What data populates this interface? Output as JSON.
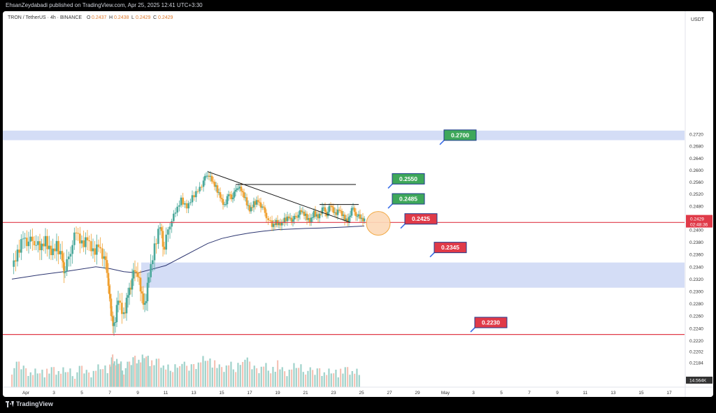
{
  "header": {
    "published_text": "EhsanZeydabadi published on TradingView.com, Apr 25, 2025 12:41 UTC+3:30"
  },
  "footer": {
    "brand": "TradingView"
  },
  "chart_data": {
    "type": "candlestick",
    "symbol_legend": {
      "symbol": "TRON / TetherUS · 4h · BINANCE",
      "o_label": "O",
      "o": "0.2437",
      "h_label": "H",
      "h": "0.2438",
      "l_label": "L",
      "l": "0.2429",
      "c_label": "C",
      "c": "0.2429"
    },
    "currency_label": "USDT",
    "y_ticks": [
      "0.2720",
      "0.2680",
      "0.2640",
      "0.2600",
      "0.2560",
      "0.2520",
      "0.2480",
      "0.2440",
      "0.2400",
      "0.2380",
      "0.2360",
      "0.2340",
      "0.2320",
      "0.2300",
      "0.2280",
      "0.2260",
      "0.2240",
      "0.2220",
      "0.2202",
      "0.2184"
    ],
    "x_ticks": [
      {
        "label": "Apr",
        "day": 1
      },
      {
        "label": "3",
        "day": 3
      },
      {
        "label": "5",
        "day": 5
      },
      {
        "label": "7",
        "day": 7
      },
      {
        "label": "9",
        "day": 9
      },
      {
        "label": "11",
        "day": 11
      },
      {
        "label": "13",
        "day": 13
      },
      {
        "label": "15",
        "day": 15
      },
      {
        "label": "17",
        "day": 17
      },
      {
        "label": "19",
        "day": 19
      },
      {
        "label": "21",
        "day": 21
      },
      {
        "label": "23",
        "day": 23
      },
      {
        "label": "25",
        "day": 25
      },
      {
        "label": "27",
        "day": 27
      },
      {
        "label": "29",
        "day": 29
      },
      {
        "label": "May",
        "day": 31
      },
      {
        "label": "3",
        "day": 33
      },
      {
        "label": "5",
        "day": 35
      },
      {
        "label": "7",
        "day": 37
      },
      {
        "label": "9",
        "day": 39
      },
      {
        "label": "11",
        "day": 41
      },
      {
        "label": "13",
        "day": 43
      },
      {
        "label": "15",
        "day": 45
      },
      {
        "label": "17",
        "day": 47
      }
    ],
    "current_price_label": "0.2429",
    "countdown_label": "02:48:36",
    "volume_label": "14.564K",
    "price_path": [
      [
        0.0,
        0.234
      ],
      [
        0.4,
        0.2362
      ],
      [
        0.8,
        0.2392
      ],
      [
        1.2,
        0.2378
      ],
      [
        1.6,
        0.2384
      ],
      [
        2.0,
        0.2367
      ],
      [
        2.4,
        0.2381
      ],
      [
        2.8,
        0.2362
      ],
      [
        3.2,
        0.2376
      ],
      [
        3.6,
        0.2356
      ],
      [
        3.8,
        0.233
      ],
      [
        4.2,
        0.237
      ],
      [
        4.6,
        0.2395
      ],
      [
        5.0,
        0.2374
      ],
      [
        5.4,
        0.2386
      ],
      [
        5.8,
        0.2364
      ],
      [
        6.2,
        0.2378
      ],
      [
        6.6,
        0.2354
      ],
      [
        6.9,
        0.2318
      ],
      [
        7.1,
        0.226
      ],
      [
        7.3,
        0.224
      ],
      [
        7.6,
        0.2288
      ],
      [
        8.0,
        0.226
      ],
      [
        8.3,
        0.23
      ],
      [
        8.6,
        0.2318
      ],
      [
        8.9,
        0.234
      ],
      [
        9.2,
        0.23
      ],
      [
        9.5,
        0.2272
      ],
      [
        9.8,
        0.2326
      ],
      [
        10.2,
        0.2372
      ],
      [
        10.6,
        0.2415
      ],
      [
        10.9,
        0.2365
      ],
      [
        11.3,
        0.242
      ],
      [
        11.7,
        0.2458
      ],
      [
        12.1,
        0.2499
      ],
      [
        12.5,
        0.2475
      ],
      [
        12.9,
        0.251
      ],
      [
        13.3,
        0.2535
      ],
      [
        13.7,
        0.2562
      ],
      [
        14.0,
        0.259
      ],
      [
        14.3,
        0.2562
      ],
      [
        14.6,
        0.254
      ],
      [
        14.9,
        0.251
      ],
      [
        15.2,
        0.248
      ],
      [
        15.5,
        0.2525
      ],
      [
        15.8,
        0.2505
      ],
      [
        16.1,
        0.2548
      ],
      [
        16.4,
        0.253
      ],
      [
        16.7,
        0.25
      ],
      [
        17.0,
        0.2465
      ],
      [
        17.3,
        0.249
      ],
      [
        17.6,
        0.25
      ],
      [
        17.9,
        0.2475
      ],
      [
        18.2,
        0.2448
      ],
      [
        18.6,
        0.241
      ],
      [
        18.9,
        0.2424
      ],
      [
        19.2,
        0.2418
      ],
      [
        19.5,
        0.2435
      ],
      [
        19.8,
        0.2445
      ],
      [
        20.1,
        0.2432
      ],
      [
        20.4,
        0.245
      ],
      [
        20.7,
        0.246
      ],
      [
        21.0,
        0.2445
      ],
      [
        21.3,
        0.2428
      ],
      [
        21.6,
        0.2458
      ],
      [
        21.9,
        0.2445
      ],
      [
        22.2,
        0.2472
      ],
      [
        22.5,
        0.2455
      ],
      [
        22.8,
        0.248
      ],
      [
        23.1,
        0.245
      ],
      [
        23.4,
        0.2468
      ],
      [
        23.7,
        0.2445
      ],
      [
        24.0,
        0.243
      ],
      [
        24.3,
        0.247
      ],
      [
        24.6,
        0.2455
      ],
      [
        24.9,
        0.2437
      ],
      [
        25.2,
        0.2429
      ]
    ],
    "volume_path": [
      [
        0,
        3
      ],
      [
        0.5,
        4
      ],
      [
        1,
        3
      ],
      [
        1.5,
        2
      ],
      [
        2,
        3
      ],
      [
        2.5,
        2
      ],
      [
        3,
        3
      ],
      [
        3.5,
        2
      ],
      [
        4,
        3
      ],
      [
        4.5,
        2
      ],
      [
        5,
        3
      ],
      [
        5.5,
        2
      ],
      [
        6,
        3
      ],
      [
        6.5,
        4
      ],
      [
        7,
        3
      ],
      [
        7.2,
        6
      ],
      [
        7.4,
        4
      ],
      [
        7.7,
        5
      ],
      [
        8,
        3
      ],
      [
        8.4,
        4
      ],
      [
        8.8,
        6
      ],
      [
        9.2,
        5
      ],
      [
        9.6,
        7
      ],
      [
        10,
        4
      ],
      [
        10.5,
        5
      ],
      [
        11,
        3
      ],
      [
        11.5,
        3
      ],
      [
        12,
        5
      ],
      [
        12.5,
        3
      ],
      [
        13,
        4
      ],
      [
        13.5,
        5
      ],
      [
        14,
        6
      ],
      [
        14.5,
        4
      ],
      [
        15,
        3
      ],
      [
        15.5,
        4
      ],
      [
        16,
        3
      ],
      [
        16.5,
        6
      ],
      [
        17,
        4
      ],
      [
        17.5,
        3
      ],
      [
        18,
        4
      ],
      [
        18.5,
        3
      ],
      [
        19,
        4
      ],
      [
        19.5,
        2
      ],
      [
        20,
        3
      ],
      [
        20.5,
        4
      ],
      [
        21,
        3
      ],
      [
        21.5,
        2
      ],
      [
        22,
        3
      ],
      [
        22.5,
        2
      ],
      [
        23,
        3
      ],
      [
        23.5,
        2
      ],
      [
        24,
        3
      ],
      [
        24.5,
        2
      ],
      [
        25,
        2
      ]
    ],
    "ma_path": [
      [
        0,
        0.232
      ],
      [
        2,
        0.2327
      ],
      [
        4,
        0.2333
      ],
      [
        6,
        0.234
      ],
      [
        7,
        0.2337
      ],
      [
        8,
        0.2332
      ],
      [
        9,
        0.233
      ],
      [
        10,
        0.2336
      ],
      [
        11,
        0.2342
      ],
      [
        12,
        0.2354
      ],
      [
        13,
        0.2366
      ],
      [
        14,
        0.2378
      ],
      [
        15,
        0.2386
      ],
      [
        16,
        0.2391
      ],
      [
        17,
        0.2395
      ],
      [
        18,
        0.2398
      ],
      [
        19,
        0.2401
      ],
      [
        20,
        0.2403
      ],
      [
        21,
        0.2405
      ],
      [
        22,
        0.2406
      ],
      [
        23,
        0.2408
      ],
      [
        24,
        0.241
      ],
      [
        25.2,
        0.2413
      ]
    ],
    "zones": [
      {
        "from": 0.27,
        "to": 0.2732
      },
      {
        "from": 0.2306,
        "to": 0.2347
      }
    ],
    "h_lines": [
      0.2425,
      0.223
    ],
    "trend_line": {
      "x1": 14.0,
      "y1": 0.2595,
      "x2": 24.2,
      "y2": 0.2425
    },
    "resistance_segments": [
      {
        "x1": 16.0,
        "x2": 24.6,
        "y": 0.2552
      },
      {
        "x1": 22.0,
        "x2": 24.8,
        "y": 0.2485
      }
    ],
    "callouts": [
      {
        "label": "0.2700",
        "color": "#3ea75a",
        "day": 31,
        "y": 0.2718
      },
      {
        "label": "0.2550",
        "color": "#3ea75a",
        "day": 27.3,
        "y": 0.2572
      },
      {
        "label": "0.2485",
        "color": "#3ea75a",
        "day": 27.3,
        "y": 0.2505
      },
      {
        "label": "0.2425",
        "color": "#e03a48",
        "day": 28.2,
        "y": 0.2438
      },
      {
        "label": "0.2345",
        "color": "#e03a48",
        "day": 30.3,
        "y": 0.2372
      },
      {
        "label": "0.2230",
        "color": "#e03a48",
        "day": 33.2,
        "y": 0.225
      }
    ],
    "circle_marker": {
      "day": 26.2,
      "y": 0.2422
    },
    "colors": {
      "up": "#4aa89a",
      "down": "#f0a030",
      "ma": "#2c3570",
      "zone": "#cdd7f5",
      "line": "#e03a48"
    }
  }
}
